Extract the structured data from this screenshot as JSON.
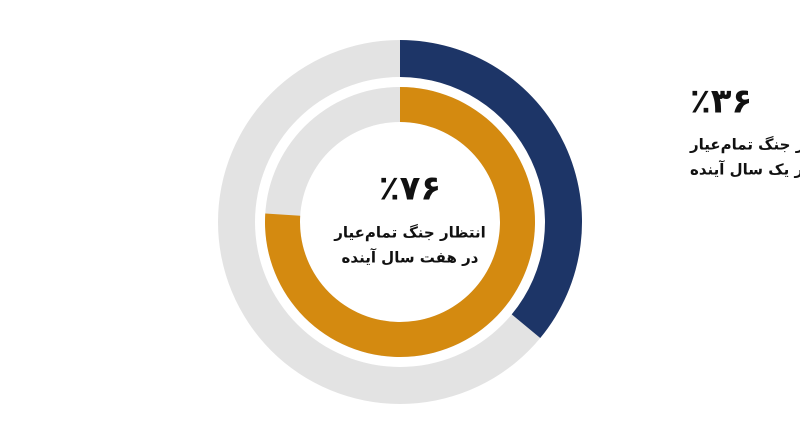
{
  "chart_data": {
    "type": "nested-donut",
    "max": 100,
    "track_color": "#e3e3e3",
    "series": [
      {
        "values": [
          36
        ],
        "value_labels": [
          "٪۳۶"
        ],
        "color": "#1d3567",
        "annotation": [
          "انتظار جنگ تمام‌عیار",
          "در یک سال آینده"
        ]
      },
      {
        "values": [
          76
        ],
        "value_labels": [
          "٪۷۶"
        ],
        "color": "#d48a10",
        "annotation": [
          "انتظار جنگ تمام‌عیار",
          "در هفت سال آینده"
        ]
      }
    ]
  }
}
